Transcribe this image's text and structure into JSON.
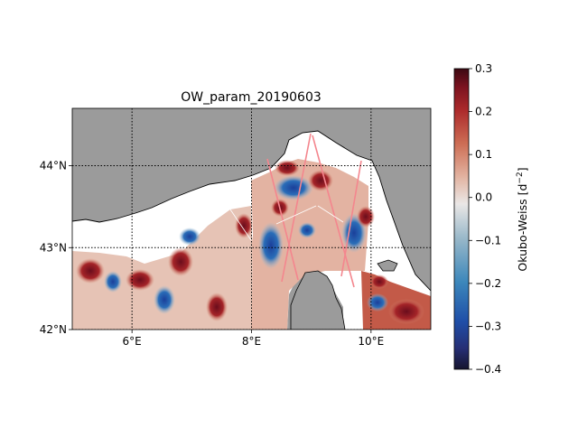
{
  "title": "OW_param_20190603",
  "colors": {
    "land": "#9b9b9b",
    "no_data": "#ffffff",
    "coastline": "#000000",
    "grid": "#000000",
    "tracks": "#f4868e",
    "track_thin": "#ffffff"
  },
  "map": {
    "lon_range": [
      5.0,
      11.0
    ],
    "lat_range": [
      42.0,
      44.7
    ],
    "x_ticks": [
      {
        "value": 6,
        "label": "6°E"
      },
      {
        "value": 8,
        "label": "8°E"
      },
      {
        "value": 10,
        "label": "10°E"
      }
    ],
    "y_ticks": [
      {
        "value": 42,
        "label": "42°N"
      },
      {
        "value": 43,
        "label": "43°N"
      },
      {
        "value": 44,
        "label": "44°N"
      }
    ],
    "gridlines": "dotted"
  },
  "colorbar": {
    "label": "Okubo-Weiss [d$^{-2}$]",
    "label_main": "Okubo-Weiss [d",
    "label_exp": "−2",
    "label_end": "]",
    "range": [
      -0.4,
      0.3
    ],
    "colormap": "balance",
    "ticks": [
      {
        "value": 0.3,
        "label": "0.3"
      },
      {
        "value": 0.2,
        "label": "0.2"
      },
      {
        "value": 0.1,
        "label": "0.1"
      },
      {
        "value": 0.0,
        "label": "0.0"
      },
      {
        "value": -0.1,
        "label": "−0.1"
      },
      {
        "value": -0.2,
        "label": "−0.2"
      },
      {
        "value": -0.3,
        "label": "−0.3"
      },
      {
        "value": -0.4,
        "label": "−0.4"
      }
    ]
  }
}
